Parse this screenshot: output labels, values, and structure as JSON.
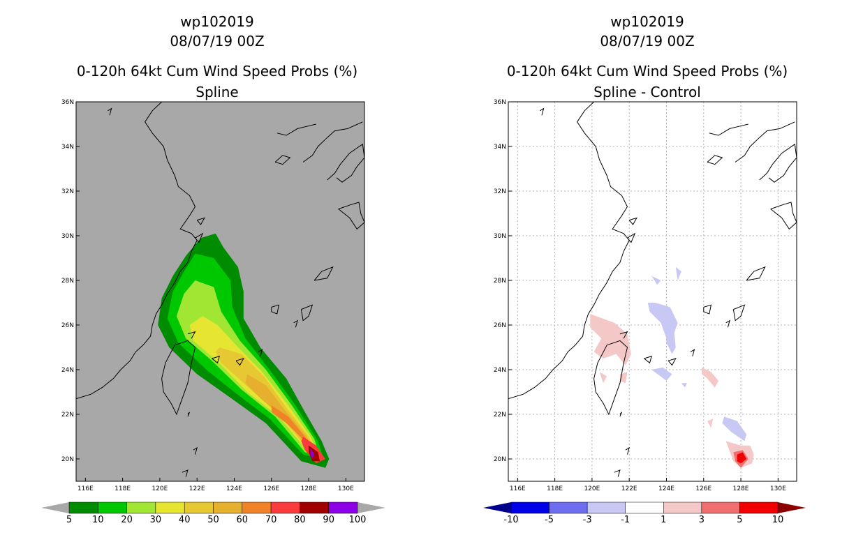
{
  "chart_data": [
    {
      "type": "heatmap",
      "panel": "left",
      "title_lines": [
        "wp102019",
        "08/07/19 00Z",
        "0-120h 64kt Cum Wind Speed Probs (%)",
        "Spline"
      ],
      "x_ticks": [
        "116E",
        "118E",
        "120E",
        "122E",
        "124E",
        "126E",
        "128E",
        "130E"
      ],
      "y_ticks": [
        "20N",
        "22N",
        "24N",
        "26N",
        "28N",
        "30N",
        "32N",
        "34N",
        "36N"
      ],
      "xlim": [
        115.5,
        131.0
      ],
      "ylim": [
        19.0,
        36.0
      ],
      "grid": false,
      "background_color": "#a8a8a8",
      "levels": [
        5,
        10,
        20,
        30,
        40,
        50,
        60,
        70,
        80,
        90,
        100
      ],
      "level_labels": [
        "5",
        "10",
        "20",
        "30",
        "40",
        "50",
        "60",
        "70",
        "80",
        "90",
        "100"
      ],
      "level_colors": [
        "#008c00",
        "#00c800",
        "#a0e632",
        "#e6e632",
        "#e6c832",
        "#e6af2d",
        "#f08228",
        "#fa3c3c",
        "#a00000",
        "#8c00e6"
      ],
      "extend_colors": [
        "#a8a8a8",
        "#a8a8a8"
      ],
      "contours": [
        {
          "level": 5,
          "points": [
            [
              122.2,
              29.9
            ],
            [
              123.0,
              30.1
            ],
            [
              123.4,
              29.5
            ],
            [
              124.2,
              28.6
            ],
            [
              124.5,
              27.5
            ],
            [
              124.5,
              26.3
            ],
            [
              125.4,
              25.0
            ],
            [
              126.8,
              23.6
            ],
            [
              127.8,
              22.1
            ],
            [
              128.7,
              20.8
            ],
            [
              129.1,
              20.0
            ],
            [
              128.9,
              19.6
            ],
            [
              127.6,
              19.9
            ],
            [
              125.7,
              21.6
            ],
            [
              123.7,
              22.8
            ],
            [
              122.0,
              23.8
            ],
            [
              120.5,
              25.0
            ],
            [
              119.9,
              26.0
            ],
            [
              120.1,
              27.2
            ],
            [
              120.7,
              28.2
            ],
            [
              121.4,
              29.1
            ]
          ]
        },
        {
          "level": 10,
          "points": [
            [
              121.9,
              29.2
            ],
            [
              122.9,
              29.0
            ],
            [
              123.8,
              28.0
            ],
            [
              123.9,
              26.8
            ],
            [
              124.6,
              25.4
            ],
            [
              125.9,
              24.0
            ],
            [
              127.3,
              22.4
            ],
            [
              128.5,
              20.8
            ],
            [
              128.8,
              20.0
            ],
            [
              127.7,
              20.2
            ],
            [
              125.9,
              21.8
            ],
            [
              124.0,
              23.0
            ],
            [
              122.5,
              24.0
            ],
            [
              121.0,
              25.2
            ],
            [
              120.4,
              26.3
            ],
            [
              120.7,
              27.5
            ],
            [
              121.3,
              28.4
            ]
          ]
        },
        {
          "level": 20,
          "points": [
            [
              121.9,
              28.0
            ],
            [
              122.9,
              27.7
            ],
            [
              123.3,
              26.6
            ],
            [
              124.3,
              25.3
            ],
            [
              125.7,
              24.0
            ],
            [
              127.1,
              22.4
            ],
            [
              128.3,
              20.9
            ],
            [
              128.6,
              20.1
            ],
            [
              127.8,
              20.3
            ],
            [
              126.2,
              21.9
            ],
            [
              124.4,
              23.1
            ],
            [
              122.8,
              24.4
            ],
            [
              121.4,
              25.4
            ],
            [
              120.9,
              26.4
            ],
            [
              121.3,
              27.4
            ]
          ]
        },
        {
          "level": 30,
          "points": [
            [
              122.3,
              26.4
            ],
            [
              123.1,
              26.0
            ],
            [
              124.1,
              25.1
            ],
            [
              125.5,
              23.9
            ],
            [
              126.9,
              22.4
            ],
            [
              128.1,
              21.0
            ],
            [
              128.5,
              20.2
            ],
            [
              127.8,
              20.5
            ],
            [
              126.4,
              21.9
            ],
            [
              124.7,
              23.0
            ],
            [
              123.2,
              24.3
            ],
            [
              121.8,
              25.3
            ],
            [
              121.6,
              26.0
            ]
          ]
        },
        {
          "level": 40,
          "points": [
            [
              123.2,
              25.0
            ],
            [
              124.4,
              24.7
            ],
            [
              125.6,
              23.7
            ],
            [
              126.8,
              22.3
            ],
            [
              128.0,
              21.0
            ],
            [
              128.4,
              20.3
            ],
            [
              127.8,
              20.6
            ],
            [
              126.5,
              21.9
            ],
            [
              124.9,
              23.1
            ],
            [
              123.3,
              24.3
            ],
            [
              123.0,
              24.8
            ]
          ]
        },
        {
          "level": 50,
          "points": [
            [
              124.7,
              23.8
            ],
            [
              125.7,
              23.3
            ],
            [
              126.8,
              22.1
            ],
            [
              127.9,
              21.0
            ],
            [
              128.3,
              20.3
            ],
            [
              127.8,
              20.7
            ],
            [
              126.7,
              21.8
            ],
            [
              125.3,
              22.8
            ],
            [
              124.6,
              23.4
            ]
          ]
        },
        {
          "level": 60,
          "points": [
            [
              126.0,
              22.4
            ],
            [
              126.9,
              21.9
            ],
            [
              127.8,
              21.0
            ],
            [
              128.2,
              20.4
            ],
            [
              127.8,
              20.8
            ],
            [
              126.8,
              21.6
            ],
            [
              126.0,
              22.1
            ]
          ]
        },
        {
          "level": 70,
          "points": [
            [
              127.7,
              21.0
            ],
            [
              128.4,
              20.6
            ],
            [
              128.9,
              20.0
            ],
            [
              128.4,
              19.8
            ],
            [
              127.8,
              20.4
            ],
            [
              127.6,
              20.8
            ]
          ]
        },
        {
          "level": 80,
          "points": [
            [
              128.0,
              20.6
            ],
            [
              128.5,
              20.3
            ],
            [
              128.6,
              19.9
            ],
            [
              128.2,
              19.9
            ],
            [
              128.0,
              20.3
            ]
          ]
        },
        {
          "level": 90,
          "points": [
            [
              128.1,
              20.5
            ],
            [
              128.3,
              20.2
            ],
            [
              128.2,
              20.0
            ],
            [
              128.1,
              20.2
            ]
          ]
        }
      ]
    },
    {
      "type": "heatmap",
      "panel": "right",
      "title_lines": [
        "wp102019",
        "08/07/19 00Z",
        "0-120h 64kt Cum Wind Speed Probs (%)",
        "Spline - Control"
      ],
      "x_ticks": [
        "116E",
        "118E",
        "120E",
        "122E",
        "124E",
        "126E",
        "128E",
        "130E"
      ],
      "y_ticks": [
        "20N",
        "22N",
        "24N",
        "26N",
        "28N",
        "30N",
        "32N",
        "34N",
        "36N"
      ],
      "xlim": [
        115.5,
        131.0
      ],
      "ylim": [
        19.0,
        36.0
      ],
      "grid": true,
      "background_color": "#ffffff",
      "levels": [
        -10,
        -5,
        -3,
        -1,
        1,
        3,
        5,
        10
      ],
      "level_labels": [
        "-10",
        "-5",
        "-3",
        "-1",
        "1",
        "3",
        "5",
        "10"
      ],
      "level_colors": [
        "#0000e6",
        "#6e6ef0",
        "#c8c8f5",
        "#ffffff",
        "#f5c8c8",
        "#f06e6e",
        "#f00000"
      ],
      "extend_colors": [
        "#00008c",
        "#8c0000"
      ],
      "contours": [
        {
          "level": -3,
          "points": [
            [
              123.4,
              27.0
            ],
            [
              124.2,
              26.8
            ],
            [
              124.6,
              26.1
            ],
            [
              124.4,
              25.6
            ],
            [
              124.0,
              25.4
            ],
            [
              123.7,
              26.1
            ],
            [
              123.1,
              26.6
            ],
            [
              123.0,
              27.0
            ]
          ]
        },
        {
          "level": -3,
          "points": [
            [
              124.0,
              25.8
            ],
            [
              124.4,
              25.8
            ],
            [
              124.5,
              25.0
            ],
            [
              124.3,
              24.7
            ],
            [
              124.0,
              25.2
            ]
          ]
        },
        {
          "level": -3,
          "points": [
            [
              123.2,
              28.2
            ],
            [
              123.7,
              28.0
            ],
            [
              123.5,
              27.8
            ]
          ]
        },
        {
          "level": -3,
          "points": [
            [
              124.5,
              28.6
            ],
            [
              124.8,
              28.4
            ],
            [
              124.6,
              28.0
            ]
          ]
        },
        {
          "level": -3,
          "points": [
            [
              123.2,
              24.0
            ],
            [
              123.8,
              24.1
            ],
            [
              124.3,
              23.8
            ],
            [
              124.0,
              23.5
            ]
          ]
        },
        {
          "level": -3,
          "points": [
            [
              127.1,
              21.9
            ],
            [
              127.8,
              21.7
            ],
            [
              128.3,
              21.1
            ],
            [
              128.2,
              20.8
            ],
            [
              127.5,
              21.2
            ],
            [
              127.0,
              21.6
            ]
          ]
        },
        {
          "level": -3,
          "points": [
            [
              124.8,
              23.4
            ],
            [
              125.1,
              23.4
            ],
            [
              125.0,
              23.2
            ]
          ]
        },
        {
          "level": -3,
          "points": [
            [
              127.5,
              20.6
            ],
            [
              127.7,
              20.7
            ],
            [
              127.7,
              20.4
            ]
          ]
        },
        {
          "level": 1,
          "points": [
            [
              119.9,
              26.5
            ],
            [
              121.2,
              26.1
            ],
            [
              121.9,
              25.6
            ],
            [
              122.1,
              24.7
            ],
            [
              121.8,
              24.2
            ],
            [
              121.3,
              24.7
            ],
            [
              120.6,
              24.5
            ],
            [
              120.1,
              24.8
            ],
            [
              120.5,
              25.4
            ],
            [
              119.9,
              25.9
            ]
          ]
        },
        {
          "level": 1,
          "points": [
            [
              121.5,
              23.8
            ],
            [
              121.9,
              23.9
            ],
            [
              121.8,
              23.4
            ],
            [
              121.5,
              23.5
            ]
          ]
        },
        {
          "level": 1,
          "points": [
            [
              120.4,
              23.9
            ],
            [
              120.8,
              23.7
            ],
            [
              120.6,
              23.4
            ]
          ]
        },
        {
          "level": 1,
          "points": [
            [
              125.9,
              24.1
            ],
            [
              126.4,
              23.9
            ],
            [
              126.8,
              23.5
            ],
            [
              126.6,
              23.2
            ],
            [
              126.2,
              23.6
            ],
            [
              125.9,
              23.8
            ]
          ]
        },
        {
          "level": 1,
          "points": [
            [
              127.2,
              20.8
            ],
            [
              128.0,
              20.6
            ],
            [
              128.5,
              20.6
            ],
            [
              128.7,
              20.2
            ],
            [
              128.6,
              19.8
            ],
            [
              128.0,
              19.6
            ],
            [
              127.6,
              19.9
            ]
          ]
        },
        {
          "level": 1,
          "points": [
            [
              126.2,
              21.7
            ],
            [
              126.5,
              21.8
            ],
            [
              126.4,
              21.4
            ]
          ]
        },
        {
          "level": 3,
          "points": [
            [
              127.6,
              20.3
            ],
            [
              128.1,
              20.4
            ],
            [
              128.4,
              20.0
            ],
            [
              128.0,
              19.6
            ],
            [
              127.7,
              19.9
            ]
          ]
        },
        {
          "level": 5,
          "points": [
            [
              127.8,
              20.2
            ],
            [
              128.1,
              20.3
            ],
            [
              128.3,
              20.0
            ],
            [
              128.0,
              19.8
            ],
            [
              127.8,
              19.9
            ]
          ]
        }
      ]
    }
  ]
}
